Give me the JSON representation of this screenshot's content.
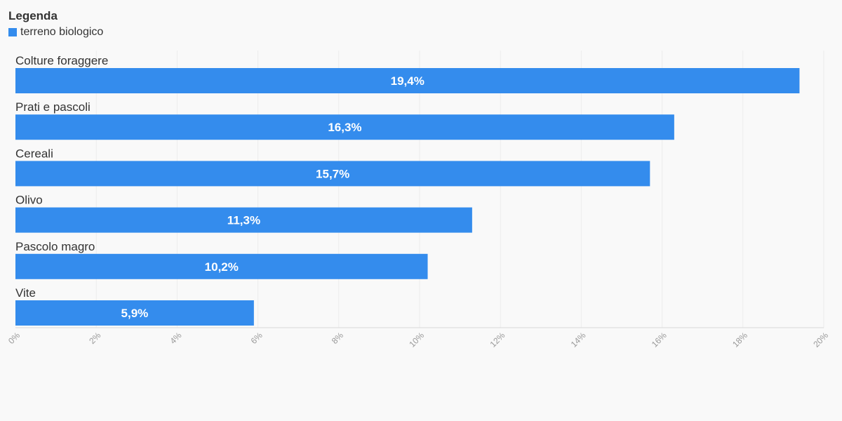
{
  "legend": {
    "title": "Legenda",
    "items": [
      {
        "label": "terreno biologico",
        "color": "#348ced"
      }
    ]
  },
  "chart_data": {
    "type": "bar",
    "orientation": "horizontal",
    "title": "",
    "xlabel": "",
    "ylabel": "",
    "categories": [
      "Colture foraggere",
      "Prati e pascoli",
      "Cereali",
      "Olivo",
      "Pascolo magro",
      "Vite"
    ],
    "series": [
      {
        "name": "terreno biologico",
        "color": "#348ced",
        "values": [
          19.4,
          16.3,
          15.7,
          11.3,
          10.2,
          5.9
        ],
        "labels": [
          "19,4%",
          "16,3%",
          "15,7%",
          "11,3%",
          "10,2%",
          "5,9%"
        ]
      }
    ],
    "xlim": [
      0,
      20
    ],
    "ticks": [
      "0%",
      "2%",
      "4%",
      "6%",
      "8%",
      "10%",
      "12%",
      "14%",
      "16%",
      "18%",
      "20%"
    ],
    "grid": true,
    "legend_position": "top-left"
  }
}
